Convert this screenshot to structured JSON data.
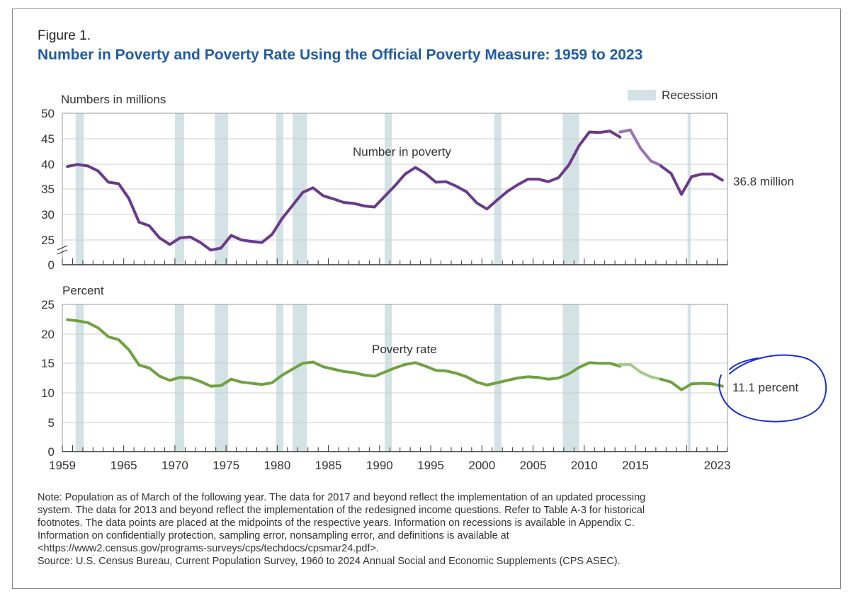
{
  "figure": {
    "label": "Figure 1.",
    "title": "Number in Poverty and Poverty Rate Using the Official Poverty Measure: 1959 to 2023"
  },
  "legend": {
    "recession_label": "Recession",
    "recession_color": "#d3e2e5"
  },
  "colors": {
    "number_series": "#6b3a8c",
    "number_series_light": "#9a72b8",
    "rate_series": "#6ea240",
    "rate_series_light": "#a5c98a",
    "annotation_ink": "#1a2fd8",
    "grid": "#cccccc"
  },
  "chart_data": [
    {
      "type": "line",
      "ylabel": "Numbers in millions",
      "series_label": "Number in poverty",
      "end_label": "36.8 million",
      "ylim": [
        22,
        50
      ],
      "y_ticks": [
        "50",
        "45",
        "40",
        "35",
        "30",
        "25",
        "0"
      ],
      "axis_break": true,
      "recessions": [
        [
          1960.3,
          1961.1
        ],
        [
          1970.0,
          1970.9
        ],
        [
          1973.9,
          1975.2
        ],
        [
          1979.9,
          1980.6
        ],
        [
          1981.5,
          1982.9
        ],
        [
          1990.5,
          1991.2
        ],
        [
          2001.2,
          2001.9
        ],
        [
          2007.9,
          2009.5
        ],
        [
          2020.1,
          2020.4
        ]
      ],
      "segments": [
        {
          "x": [
            1959.5,
            1960.5,
            1961.5,
            1962.5,
            1963.5,
            1964.5,
            1965.5,
            1966.5,
            1967.5,
            1968.5,
            1969.5,
            1970.5,
            1971.5,
            1972.5,
            1973.5,
            1974.5,
            1975.5,
            1976.5,
            1977.5,
            1978.5,
            1979.5,
            1980.5,
            1981.5,
            1982.5,
            1983.5,
            1984.5,
            1985.5,
            1986.5,
            1987.5,
            1988.5,
            1989.5,
            1990.5,
            1991.5,
            1992.5,
            1993.5,
            1994.5,
            1995.5,
            1996.5,
            1997.5,
            1998.5,
            1999.5,
            2000.5,
            2001.5,
            2002.5,
            2003.5,
            2004.5,
            2005.5,
            2006.5,
            2007.5,
            2008.5,
            2009.5,
            2010.5,
            2011.5,
            2012.5,
            2013.5
          ],
          "y": [
            39.5,
            39.9,
            39.6,
            38.6,
            36.4,
            36.1,
            33.2,
            28.5,
            27.8,
            25.4,
            24.1,
            25.4,
            25.6,
            24.5,
            23.0,
            23.4,
            25.9,
            25.0,
            24.7,
            24.5,
            26.1,
            29.3,
            31.8,
            34.4,
            35.3,
            33.7,
            33.1,
            32.4,
            32.2,
            31.7,
            31.5,
            33.6,
            35.7,
            38.0,
            39.3,
            38.1,
            36.4,
            36.5,
            35.6,
            34.5,
            32.3,
            31.1,
            32.9,
            34.6,
            35.9,
            37.0,
            37.0,
            36.5,
            37.3,
            39.8,
            43.6,
            46.3,
            46.2,
            46.5,
            45.3
          ],
          "style": "dark"
        },
        {
          "x": [
            2013.5,
            2014.5,
            2015.5,
            2016.5,
            2017.5
          ],
          "y": [
            46.3,
            46.7,
            43.1,
            40.6,
            39.7
          ],
          "style": "light"
        },
        {
          "x": [
            2017.5,
            2018.5,
            2019.5,
            2020.5,
            2021.5,
            2022.5,
            2023.5
          ],
          "y": [
            39.6,
            38.1,
            34.0,
            37.5,
            38.0,
            38.0,
            36.8
          ],
          "style": "dark"
        }
      ]
    },
    {
      "type": "line",
      "ylabel": "Percent",
      "series_label": "Poverty rate",
      "end_label": "11.1 percent",
      "ylim": [
        0,
        25
      ],
      "y_ticks": [
        "25",
        "20",
        "15",
        "10",
        "5",
        "0"
      ],
      "x_ticks": [
        "1959",
        "1965",
        "1970",
        "1975",
        "1980",
        "1985",
        "1990",
        "1995",
        "2000",
        "2005",
        "2010",
        "2015",
        "2023"
      ],
      "segments": [
        {
          "x": [
            1959.5,
            1960.5,
            1961.5,
            1962.5,
            1963.5,
            1964.5,
            1965.5,
            1966.5,
            1967.5,
            1968.5,
            1969.5,
            1970.5,
            1971.5,
            1972.5,
            1973.5,
            1974.5,
            1975.5,
            1976.5,
            1977.5,
            1978.5,
            1979.5,
            1980.5,
            1981.5,
            1982.5,
            1983.5,
            1984.5,
            1985.5,
            1986.5,
            1987.5,
            1988.5,
            1989.5,
            1990.5,
            1991.5,
            1992.5,
            1993.5,
            1994.5,
            1995.5,
            1996.5,
            1997.5,
            1998.5,
            1999.5,
            2000.5,
            2001.5,
            2002.5,
            2003.5,
            2004.5,
            2005.5,
            2006.5,
            2007.5,
            2008.5,
            2009.5,
            2010.5,
            2011.5,
            2012.5,
            2013.5
          ],
          "y": [
            22.4,
            22.2,
            21.9,
            21.0,
            19.5,
            19.0,
            17.3,
            14.7,
            14.2,
            12.8,
            12.1,
            12.6,
            12.5,
            11.9,
            11.1,
            11.2,
            12.3,
            11.8,
            11.6,
            11.4,
            11.7,
            13.0,
            14.0,
            15.0,
            15.2,
            14.4,
            14.0,
            13.6,
            13.4,
            13.0,
            12.8,
            13.5,
            14.2,
            14.8,
            15.1,
            14.5,
            13.8,
            13.7,
            13.3,
            12.7,
            11.8,
            11.3,
            11.7,
            12.1,
            12.5,
            12.7,
            12.6,
            12.3,
            12.5,
            13.2,
            14.3,
            15.1,
            15.0,
            15.0,
            14.5
          ],
          "style": "dark"
        },
        {
          "x": [
            2013.5,
            2014.5,
            2015.5,
            2016.5,
            2017.5
          ],
          "y": [
            14.8,
            14.8,
            13.5,
            12.7,
            12.3
          ],
          "style": "light"
        },
        {
          "x": [
            2017.5,
            2018.5,
            2019.5,
            2020.5,
            2021.5,
            2022.5,
            2023.5
          ],
          "y": [
            12.3,
            11.8,
            10.5,
            11.5,
            11.6,
            11.5,
            11.1
          ],
          "style": "dark"
        }
      ]
    }
  ],
  "note": [
    "Note: Population as of March of the following year. The data for 2017 and beyond reflect the implementation of an updated processing",
    "system. The data for 2013 and beyond reflect the implementation of the redesigned income questions. Refer to Table A-3 for historical",
    "footnotes. The data points are placed at the midpoints of the respective years. Information on recessions is available in Appendix C.",
    "Information on confidentially protection, sampling error, nonsampling error, and definitions is available at",
    "<https://www2.census.gov/programs-surveys/cps/techdocs/cpsmar24.pdf>.",
    "Source: U.S. Census Bureau, Current Population Survey, 1960 to 2024 Annual Social and Economic Supplements (CPS ASEC)."
  ]
}
